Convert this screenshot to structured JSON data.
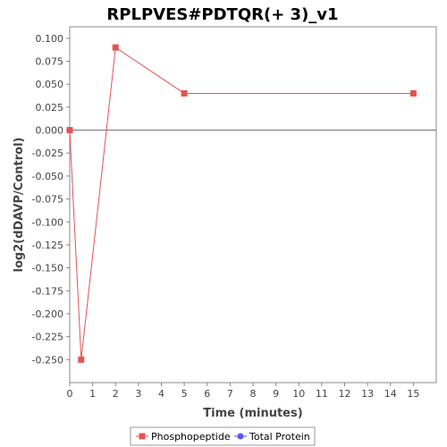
{
  "chart_data": {
    "type": "line",
    "title": "RPLPVES#PDTQR(+ 3)_v1",
    "xlabel": "Time (minutes)",
    "ylabel": "log2(dDAVP/Control)",
    "xlim": [
      0,
      16
    ],
    "ylim": [
      -0.275,
      0.1125
    ],
    "x_ticks": [
      0,
      1,
      2,
      3,
      4,
      5,
      6,
      7,
      8,
      9,
      10,
      11,
      12,
      13,
      14,
      15
    ],
    "x_tick_labels": [
      "0",
      "1",
      "2",
      "3",
      "4",
      "5",
      "6",
      "7",
      "8",
      "9",
      "10",
      "11",
      "12",
      "13",
      "14",
      "15"
    ],
    "y_ticks": [
      0.1,
      0.075,
      0.05,
      0.025,
      0.0,
      -0.025,
      -0.05,
      -0.075,
      -0.1,
      -0.125,
      -0.15,
      -0.175,
      -0.2,
      -0.225,
      -0.25
    ],
    "y_tick_labels": [
      "0.100",
      "0.075",
      "0.050",
      "0.025",
      "0.000",
      "-0.025",
      "-0.050",
      "-0.075",
      "-0.100",
      "-0.125",
      "-0.150",
      "-0.175",
      "-0.200",
      "-0.225",
      "-0.250"
    ],
    "grid": false,
    "zero_line": true,
    "legend_position": "bottom",
    "series": [
      {
        "name": "Phosphopeptide",
        "color": "#e35454",
        "marker": "square",
        "x": [
          0,
          0.5,
          2,
          5,
          15
        ],
        "y": [
          0.0,
          -0.25,
          0.09,
          0.04,
          0.04
        ]
      },
      {
        "name": "Total Protein",
        "color": "#5a5aeb",
        "marker": "circle",
        "x": [],
        "y": []
      }
    ]
  }
}
